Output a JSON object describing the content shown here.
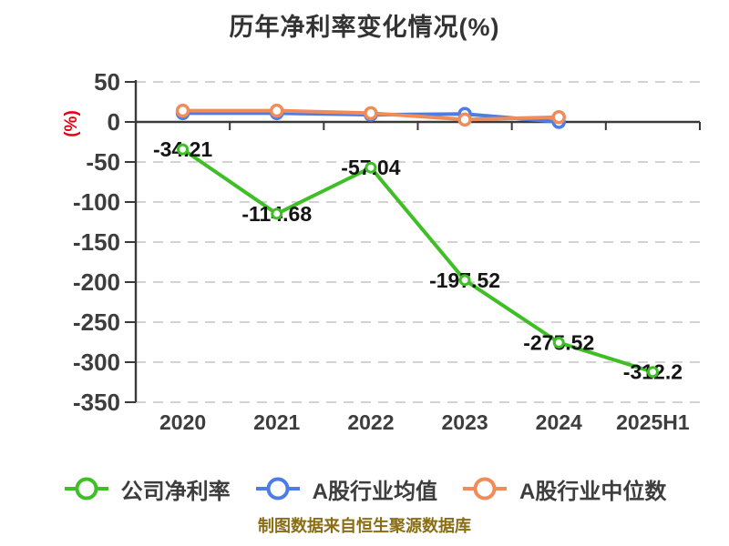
{
  "chart_data": {
    "type": "line",
    "title": "历年净利率变化情况(%)",
    "ylabel": "(%)",
    "ylabel_color": "#e60012",
    "categories": [
      "2020",
      "2021",
      "2022",
      "2023",
      "2024",
      "2025H1"
    ],
    "series": [
      {
        "key": "company-net-margin",
        "name": "公司净利率",
        "color": "#3fbf26",
        "values": [
          -34.21,
          -114.68,
          -57.04,
          -197.52,
          -275.52,
          -312.2
        ],
        "labels_shown": true
      },
      {
        "key": "industry-average",
        "name": "A股行业均值",
        "color": "#4d7de4",
        "values": [
          11,
          11,
          9,
          10,
          0,
          null
        ],
        "labels_shown": false
      },
      {
        "key": "industry-median",
        "name": "A股行业中位数",
        "color": "#f08c5a",
        "values": [
          14,
          14,
          11,
          3,
          6,
          null
        ],
        "labels_shown": false
      }
    ],
    "ylim": [
      -350,
      50
    ],
    "yticks": [
      50,
      0,
      -50,
      -100,
      -150,
      -200,
      -250,
      -300,
      -350
    ],
    "grid": "dashed-horizontal",
    "legend_position": "bottom",
    "zero_axis_highlighted": true
  },
  "caption": "制图数据来自恒生聚源数据库",
  "colors": {
    "axis": "#3a3a3a",
    "gridline": "#d2d2d2",
    "tick_label": "#3d3d3d",
    "data_label": "#141414",
    "title": "#333333",
    "caption": "#8a6d14"
  }
}
